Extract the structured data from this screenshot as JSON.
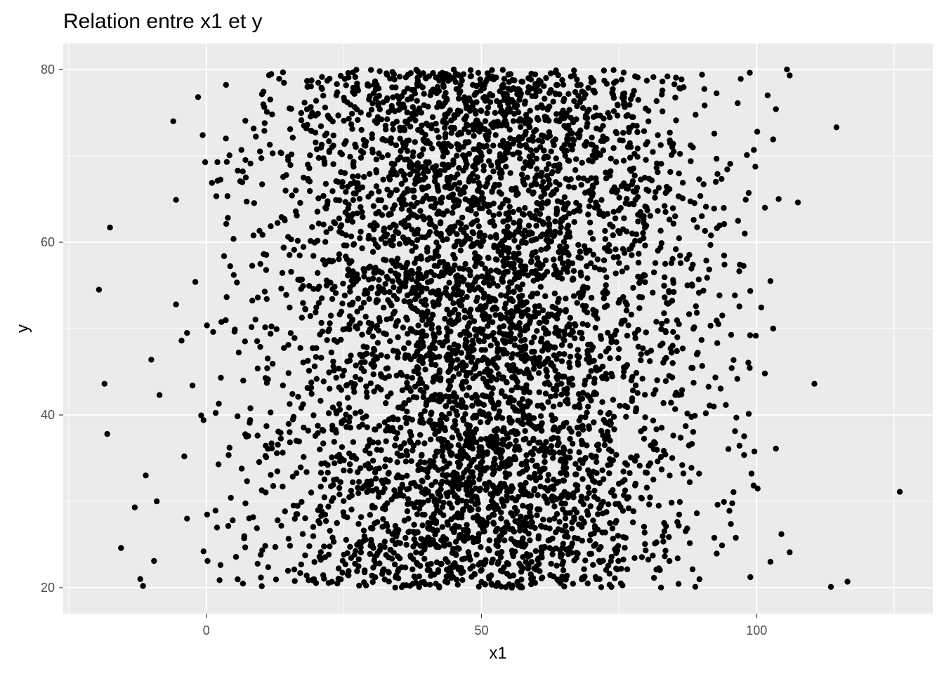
{
  "chart_data": {
    "type": "scatter",
    "title": "Relation entre x1 et y",
    "xlabel": "x1",
    "ylabel": "y",
    "xlim": [
      -26,
      132
    ],
    "ylim": [
      17,
      83
    ],
    "x_ticks": [
      0,
      50,
      100
    ],
    "y_ticks": [
      20,
      40,
      60,
      80
    ],
    "x_tick_labels": [
      "0",
      "50",
      "100"
    ],
    "y_tick_labels": [
      "20",
      "40",
      "60",
      "80"
    ],
    "grid": true,
    "point_color": "#000000",
    "panel_color": "#ebebeb",
    "grid_color": "#ffffff",
    "n_points": 5000,
    "x_distribution": {
      "mean": 50,
      "sd": 20
    },
    "y_distribution": {
      "min": 20,
      "max": 80
    },
    "outliers": [
      {
        "x": -19.5,
        "y": 54.5
      },
      {
        "x": -18.5,
        "y": 43.6
      },
      {
        "x": -18.0,
        "y": 37.8
      },
      {
        "x": -17.5,
        "y": 61.7
      },
      {
        "x": -15.5,
        "y": 24.6
      },
      {
        "x": -13.0,
        "y": 29.3
      },
      {
        "x": -12.0,
        "y": 21.0
      },
      {
        "x": -11.5,
        "y": 20.2
      },
      {
        "x": -11.0,
        "y": 33.0
      },
      {
        "x": -10.0,
        "y": 46.4
      },
      {
        "x": -9.5,
        "y": 23.1
      },
      {
        "x": -9.0,
        "y": 30.0
      },
      {
        "x": -8.5,
        "y": 42.3
      },
      {
        "x": -6.0,
        "y": 74.0
      },
      {
        "x": -5.5,
        "y": 52.8
      },
      {
        "x": -5.5,
        "y": 64.9
      },
      {
        "x": -4.5,
        "y": 48.6
      },
      {
        "x": -4.0,
        "y": 35.2
      },
      {
        "x": -3.5,
        "y": 28.0
      },
      {
        "x": -3.5,
        "y": 49.5
      },
      {
        "x": -2.5,
        "y": 43.4
      },
      {
        "x": -2.0,
        "y": 55.4
      },
      {
        "x": -1.5,
        "y": 76.8
      },
      {
        "x": -0.5,
        "y": 39.4
      },
      {
        "x": 105.5,
        "y": 80.0
      },
      {
        "x": 106.0,
        "y": 79.3
      },
      {
        "x": 106.0,
        "y": 24.1
      },
      {
        "x": 107.5,
        "y": 64.6
      },
      {
        "x": 110.5,
        "y": 43.6
      },
      {
        "x": 113.5,
        "y": 20.1
      },
      {
        "x": 114.5,
        "y": 73.3
      },
      {
        "x": 116.5,
        "y": 20.7
      },
      {
        "x": 126.0,
        "y": 31.1
      },
      {
        "x": 104.5,
        "y": 26.2
      },
      {
        "x": 103.5,
        "y": 36.1
      },
      {
        "x": 103.0,
        "y": 50.0
      },
      {
        "x": 102.5,
        "y": 55.5
      },
      {
        "x": 102.5,
        "y": 23.0
      },
      {
        "x": 102.0,
        "y": 77.0
      },
      {
        "x": 101.5,
        "y": 64.0
      },
      {
        "x": 101.5,
        "y": 44.8
      },
      {
        "x": 103.0,
        "y": 71.9
      },
      {
        "x": 103.5,
        "y": 75.4
      },
      {
        "x": 104.0,
        "y": 65.0
      }
    ]
  }
}
